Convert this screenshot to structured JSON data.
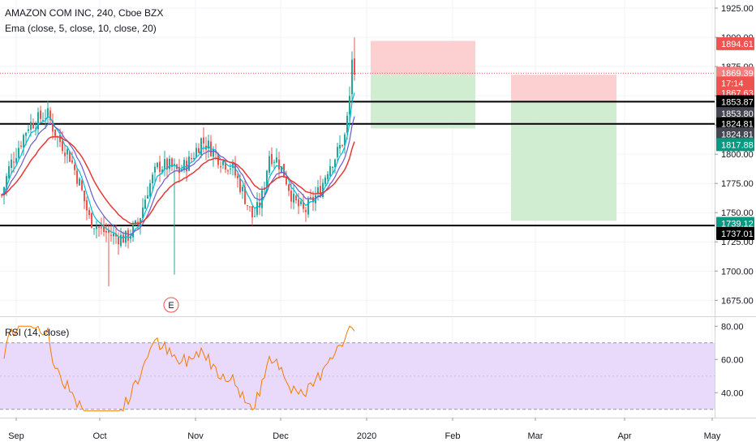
{
  "header": {
    "symbol_title": "AMAZON COM INC, 240, Cboe BZX",
    "ema_legend": "Ema (close, 5, close, 10, close, 20)",
    "rsi_legend": "RSI (14, close)"
  },
  "colors": {
    "up": "#26a69a",
    "down": "#ef5350",
    "ema_fast": "#00bcd4",
    "ema_mid": "#6a5acd",
    "ema_slow": "#e53935",
    "rsi_line": "#f57c00",
    "rsi_band": "#e9d9fb",
    "stop_zone": "#fcc8c8",
    "target_zone": "#ccebcc",
    "grid": "#f0f3fa"
  },
  "chart_data": [
    {
      "type": "candlestick",
      "title": "AMAZON COM INC, 240, Cboe BZX",
      "ylim": [
        1662,
        1932
      ],
      "y_ticks": [
        "1925.00",
        "1900.00",
        "1875.00",
        "1850.00",
        "1825.00",
        "1800.00",
        "1775.00",
        "1750.00",
        "1725.00",
        "1700.00",
        "1675.00"
      ],
      "x_ticks": [
        "Sep",
        "Oct",
        "Nov",
        "Dec",
        "2020",
        "Feb",
        "Mar",
        "Apr",
        "May"
      ],
      "overlays": [
        "Ema (close, 5)",
        "Ema (close, 10)",
        "Ema (close, 20)"
      ],
      "horizontal_lines": [
        1845,
        1826,
        1739
      ],
      "price_badges": [
        {
          "label": "1894.61",
          "value": 1894.61,
          "color": "#ef5350"
        },
        {
          "label": "1869.39",
          "value": 1869.39,
          "color": "#f57f7f"
        },
        {
          "label": "17:14",
          "value": 1860.9,
          "color": "#ef5350"
        },
        {
          "label": "1867.63",
          "value": 1852.6,
          "color": "#ef5350"
        },
        {
          "label": "1853.87",
          "value": 1845.0,
          "color": "#000000"
        },
        {
          "label": "1853.80",
          "value": 1834.7,
          "color": "#434651"
        },
        {
          "label": "1824.81",
          "value": 1826.0,
          "color": "#000000"
        },
        {
          "label": "1824.81",
          "value": 1817.3,
          "color": "#434651"
        },
        {
          "label": "1817.88",
          "value": 1808.2,
          "color": "#089981"
        },
        {
          "label": "1739.12",
          "value": 1740.8,
          "color": "#089981"
        },
        {
          "label": "1737.01",
          "value": 1732.1,
          "color": "#000000"
        }
      ],
      "positions": [
        {
          "stop_top": 1897,
          "entry": 1868,
          "target": 1822
        },
        {
          "stop_top": 1868,
          "entry": 1845,
          "target": 1743
        }
      ],
      "event_marker": "E"
    },
    {
      "type": "line",
      "title": "RSI (14, close)",
      "ylim": [
        25,
        85
      ],
      "y_ticks": [
        "80.00",
        "60.00",
        "40.00"
      ],
      "band": [
        30,
        70
      ]
    }
  ]
}
